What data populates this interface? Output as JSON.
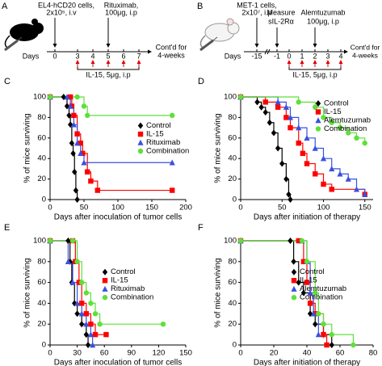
{
  "panel_a": {
    "label": "A",
    "cells": "EL4-hCD20 cells,",
    "dose": "2x10⁵, i.v",
    "drug": "Rituximab,",
    "drug_dose": "100μg, i.p",
    "days_label": "Days",
    "days": [
      "0",
      "3",
      "4",
      "5",
      "6",
      "7"
    ],
    "continued": [
      "Cont'd for",
      "4-weeks"
    ],
    "il15": "IL-15, 5μg, i.p"
  },
  "panel_b": {
    "label": "B",
    "cells": "MET-1 cells,",
    "dose": "2x10⁷, i.p",
    "measure": [
      "Measure",
      "sIL-2Rα"
    ],
    "drug": "Alemtuzumab",
    "drug_dose": "100μg, i.p",
    "days_label": "Days",
    "days": [
      "-15",
      "-1",
      "0",
      "1",
      "2",
      "3",
      "4"
    ],
    "continued": [
      "Cont'd for",
      "4-weeks"
    ],
    "il15": "IL-15, 5μg, i.p"
  },
  "chart_data": [
    {
      "type": "survival",
      "panel": "C",
      "xlabel": "Days after inoculation of tumor cells",
      "ylabel": "% of mice surviving",
      "xlim": [
        0,
        200
      ],
      "xticks": [
        0,
        50,
        100,
        150,
        200
      ],
      "ylim": [
        0,
        100
      ],
      "yticks": [
        0,
        20,
        40,
        60,
        80,
        100
      ],
      "legend": "center right",
      "series": [
        {
          "name": "Control",
          "color": "#000000",
          "marker": "diamond",
          "x": [
            0,
            20,
            25,
            28,
            30,
            32,
            34,
            36,
            38,
            40
          ],
          "values": [
            100,
            100,
            91,
            82,
            73,
            55,
            45,
            27,
            9,
            0
          ]
        },
        {
          "name": "IL-15",
          "color": "#ff0000",
          "marker": "square",
          "x": [
            0,
            30,
            32,
            35,
            40,
            45,
            48,
            55,
            60,
            70,
            180
          ],
          "values": [
            100,
            100,
            91,
            82,
            64,
            55,
            45,
            27,
            18,
            9,
            9
          ]
        },
        {
          "name": "Rituximab",
          "color": "#3a50e0",
          "marker": "triangle",
          "x": [
            0,
            25,
            30,
            35,
            40,
            45,
            50,
            180
          ],
          "values": [
            100,
            100,
            91,
            73,
            55,
            45,
            36,
            36
          ]
        },
        {
          "name": "Combination",
          "color": "#5ee03a",
          "marker": "circle",
          "x": [
            0,
            40,
            50,
            55,
            180
          ],
          "values": [
            100,
            100,
            91,
            82,
            82
          ]
        }
      ]
    },
    {
      "type": "survival",
      "panel": "D",
      "xlabel": "Days after initiation of therapy",
      "ylabel": "% of mice surviving",
      "xlim": [
        0,
        160
      ],
      "xticks": [
        0,
        50,
        100,
        150
      ],
      "ylim": [
        0,
        100
      ],
      "yticks": [
        0,
        20,
        40,
        60,
        80,
        100
      ],
      "legend": "upper right",
      "series": [
        {
          "name": "Control",
          "color": "#000000",
          "marker": "diamond",
          "x": [
            0,
            20,
            25,
            30,
            35,
            40,
            45,
            50,
            55,
            58,
            60
          ],
          "values": [
            100,
            95,
            90,
            85,
            75,
            65,
            50,
            35,
            20,
            5,
            0
          ]
        },
        {
          "name": "IL-15",
          "color": "#ff0000",
          "marker": "square",
          "x": [
            0,
            30,
            45,
            55,
            60,
            70,
            75,
            80,
            90,
            100,
            110,
            150
          ],
          "values": [
            100,
            95,
            90,
            80,
            70,
            55,
            45,
            35,
            25,
            15,
            10,
            5
          ]
        },
        {
          "name": "Alemtuzumab",
          "color": "#3a50e0",
          "marker": "triangle",
          "x": [
            0,
            45,
            55,
            60,
            70,
            80,
            90,
            100,
            110,
            120,
            130,
            140,
            150
          ],
          "values": [
            100,
            95,
            90,
            80,
            70,
            60,
            50,
            40,
            30,
            25,
            20,
            10,
            5
          ]
        },
        {
          "name": "Combination",
          "color": "#5ee03a",
          "marker": "circle",
          "x": [
            0,
            70,
            90,
            100,
            110,
            120,
            130,
            140,
            150
          ],
          "values": [
            100,
            95,
            90,
            80,
            75,
            70,
            65,
            60,
            55
          ]
        }
      ]
    },
    {
      "type": "survival",
      "panel": "E",
      "xlabel": "Days after inoculation of tumor cells",
      "ylabel": "% of mice surviving",
      "xlim": [
        0,
        150
      ],
      "xticks": [
        0,
        30,
        60,
        90,
        120,
        150
      ],
      "ylim": [
        0,
        100
      ],
      "yticks": [
        0,
        20,
        40,
        60,
        80,
        100
      ],
      "legend": "center",
      "series": [
        {
          "name": "Control",
          "color": "#000000",
          "marker": "diamond",
          "x": [
            0,
            20,
            22,
            24,
            27,
            30,
            35,
            40,
            42
          ],
          "values": [
            100,
            100,
            80,
            60,
            40,
            30,
            20,
            10,
            0
          ]
        },
        {
          "name": "IL-15",
          "color": "#ff0000",
          "marker": "square",
          "x": [
            0,
            25,
            28,
            32,
            35,
            40,
            45,
            50,
            62
          ],
          "values": [
            100,
            100,
            80,
            60,
            40,
            30,
            20,
            10,
            10
          ]
        },
        {
          "name": "Rituximab",
          "color": "#3a50e0",
          "marker": "triangle",
          "x": [
            0,
            20,
            25,
            30,
            35,
            40,
            45,
            47
          ],
          "values": [
            100,
            80,
            60,
            40,
            30,
            20,
            10,
            0
          ]
        },
        {
          "name": "Combination",
          "color": "#5ee03a",
          "marker": "circle",
          "x": [
            0,
            25,
            30,
            35,
            40,
            45,
            50,
            55,
            125
          ],
          "values": [
            100,
            100,
            80,
            60,
            50,
            40,
            30,
            20,
            20
          ]
        }
      ]
    },
    {
      "type": "survival",
      "panel": "F",
      "xlabel": "Days after initiation of therapy",
      "ylabel": "% of mice surviving",
      "xlim": [
        0,
        80
      ],
      "xticks": [
        0,
        20,
        40,
        60,
        80
      ],
      "ylim": [
        0,
        100
      ],
      "yticks": [
        0,
        20,
        40,
        60,
        80,
        100
      ],
      "legend": "center",
      "series": [
        {
          "name": "Control",
          "color": "#000000",
          "marker": "diamond",
          "x": [
            0,
            30,
            32,
            35,
            38,
            42,
            45,
            50,
            55
          ],
          "values": [
            100,
            100,
            80,
            60,
            50,
            30,
            20,
            10,
            0
          ]
        },
        {
          "name": "IL-15",
          "color": "#ff0000",
          "marker": "square",
          "x": [
            0,
            35,
            38,
            40,
            42,
            45,
            50,
            52
          ],
          "values": [
            100,
            100,
            80,
            60,
            40,
            30,
            10,
            0
          ]
        },
        {
          "name": "Alemtuzumab",
          "color": "#3a50e0",
          "marker": "triangle",
          "x": [
            0,
            37,
            40,
            42,
            44,
            47
          ],
          "values": [
            100,
            100,
            80,
            50,
            30,
            10
          ]
        },
        {
          "name": "Combination",
          "color": "#5ee03a",
          "marker": "circle",
          "x": [
            0,
            37,
            40,
            45,
            47,
            50,
            55,
            68
          ],
          "values": [
            100,
            100,
            80,
            50,
            30,
            20,
            10,
            0
          ]
        }
      ]
    }
  ]
}
